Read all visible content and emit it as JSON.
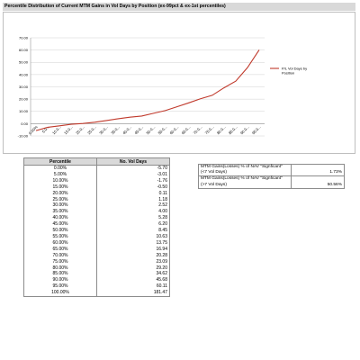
{
  "title": "Percentile Distribution of Current MTM Gains in Vol Days by Position (ex-99pct & ex-1st percentiles)",
  "chart_data": {
    "type": "line",
    "series": [
      {
        "name": "P/L Vol Days by Position",
        "color": "#c0392b",
        "x": [
          "0.00%",
          "5.00%",
          "10.00%",
          "15.00%",
          "20.00%",
          "25.00%",
          "30.00%",
          "35.00%",
          "40.00%",
          "45.00%",
          "50.00%",
          "55.00%",
          "60.00%",
          "65.00%",
          "70.00%",
          "75.00%",
          "80.00%",
          "85.00%",
          "90.00%",
          "95.00%"
        ],
        "values": [
          -5.7,
          -3.01,
          -1.76,
          -0.5,
          0.11,
          1.18,
          2.52,
          4.0,
          5.28,
          6.2,
          8.45,
          10.63,
          13.75,
          16.94,
          20.28,
          23.09,
          29.2,
          34.62,
          45.68,
          60.11
        ]
      }
    ],
    "x_tick_labels": [
      "0.00%",
      "5.0...",
      "10.0...",
      "15.0...",
      "20.0...",
      "25.0...",
      "30.0...",
      "35.0...",
      "40.0...",
      "45.0...",
      "50.0...",
      "55.0...",
      "60.0...",
      "65.0...",
      "70.0...",
      "75.0...",
      "80.0...",
      "85.0...",
      "90.0...",
      "95.0..."
    ],
    "y_tick_labels": [
      "70.00",
      "60.00",
      "50.00",
      "40.00",
      "30.00",
      "20.00",
      "10.00",
      "0.00",
      "-10.00"
    ],
    "ylim": [
      -10,
      70
    ],
    "grid": "horizontal",
    "legend_position": "right"
  },
  "table": {
    "headers": [
      "Percentile",
      "No. Vol Days"
    ],
    "rows": [
      [
        "0.00%",
        "-5.70"
      ],
      [
        "5.00%",
        "-3.01"
      ],
      [
        "10.00%",
        "-1.76"
      ],
      [
        "15.00%",
        "-0.50"
      ],
      [
        "20.00%",
        "0.11"
      ],
      [
        "25.00%",
        "1.18"
      ],
      [
        "30.00%",
        "2.52"
      ],
      [
        "35.00%",
        "4.00"
      ],
      [
        "40.00%",
        "5.28"
      ],
      [
        "45.00%",
        "6.20"
      ],
      [
        "50.00%",
        "8.45"
      ],
      [
        "55.00%",
        "10.63"
      ],
      [
        "60.00%",
        "13.75"
      ],
      [
        "65.00%",
        "16.94"
      ],
      [
        "70.00%",
        "20.28"
      ],
      [
        "75.00%",
        "23.09"
      ],
      [
        "80.00%",
        "29.20"
      ],
      [
        "85.00%",
        "34.62"
      ],
      [
        "90.00%",
        "45.68"
      ],
      [
        "95.00%",
        "60.11"
      ],
      [
        "100.00%",
        "181.47"
      ]
    ]
  },
  "side_table": [
    {
      "line1": "MTM Gains(Losses) % of NAV \"Signficant\"",
      "line2": "(<7 Vol Days)",
      "value": "1.73%"
    },
    {
      "line1": "MTM Gains(Losses) % of NAV \"Signficant\"",
      "line2": "(>7 Vol Days)",
      "value": "50.56%"
    }
  ]
}
